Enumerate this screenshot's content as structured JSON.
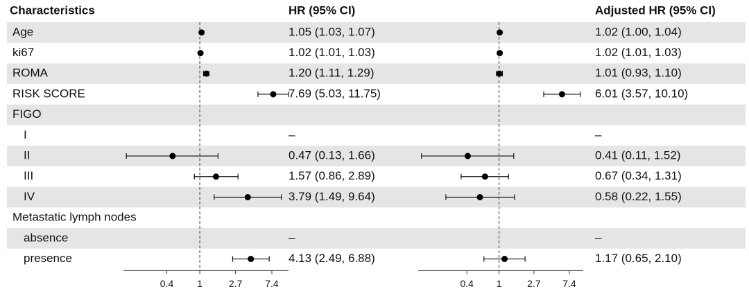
{
  "chart_data": {
    "type": "forest",
    "label_header": "Characteristics",
    "categories": [
      "Age",
      "ki67",
      "ROMA",
      "RISK SCORE",
      "FIGO",
      "I",
      "II",
      "III",
      "IV",
      "Metastatic lymph nodes",
      "absence",
      "presence"
    ],
    "indent": [
      0,
      0,
      0,
      0,
      0,
      1,
      1,
      1,
      1,
      0,
      1,
      1
    ],
    "stripe_color": "#e5e5e5",
    "panels": [
      {
        "title": "HR (95% CI)",
        "log": true,
        "xlim": [
          0.12,
          11.75
        ],
        "xticks": [
          0.4,
          1,
          2.7,
          7.4
        ],
        "reference": 1,
        "values": [
          1.05,
          1.02,
          1.2,
          7.69,
          null,
          null,
          0.47,
          1.57,
          3.79,
          null,
          null,
          4.13
        ],
        "lower": [
          1.03,
          1.01,
          1.11,
          5.03,
          null,
          null,
          0.13,
          0.86,
          1.49,
          null,
          null,
          2.49
        ],
        "upper": [
          1.07,
          1.03,
          1.29,
          11.75,
          null,
          null,
          1.66,
          2.89,
          9.64,
          null,
          null,
          6.88
        ],
        "value_labels": [
          "1.05 (1.03, 1.07)",
          "1.02 (1.01, 1.03)",
          "1.20 (1.11, 1.29)",
          "7.69 (5.03, 11.75)",
          null,
          "–",
          "0.47 (0.13, 1.66)",
          "1.57 (0.86, 2.89)",
          "3.79 (1.49, 9.64)",
          null,
          "–",
          "4.13 (2.49, 6.88)"
        ]
      },
      {
        "title": "Adjusted HR (95% CI)",
        "log": true,
        "xlim": [
          0.1,
          11
        ],
        "xticks": [
          0.4,
          1,
          2.7,
          7.4
        ],
        "reference": 1,
        "values": [
          1.02,
          1.02,
          1.01,
          6.01,
          null,
          null,
          0.41,
          0.67,
          0.58,
          null,
          null,
          1.17
        ],
        "lower": [
          1.0,
          1.01,
          0.93,
          3.57,
          null,
          null,
          0.11,
          0.34,
          0.22,
          null,
          null,
          0.65
        ],
        "upper": [
          1.04,
          1.03,
          1.1,
          10.1,
          null,
          null,
          1.52,
          1.31,
          1.55,
          null,
          null,
          2.1
        ],
        "value_labels": [
          "1.02 (1.00, 1.04)",
          "1.02 (1.01, 1.03)",
          "1.01 (0.93, 1.10)",
          "6.01 (3.57, 10.10)",
          null,
          "–",
          "0.41 (0.11, 1.52)",
          "0.67 (0.34, 1.31)",
          "0.58 (0.22, 1.55)",
          null,
          "–",
          "1.17 (0.65, 2.10)"
        ]
      }
    ]
  }
}
